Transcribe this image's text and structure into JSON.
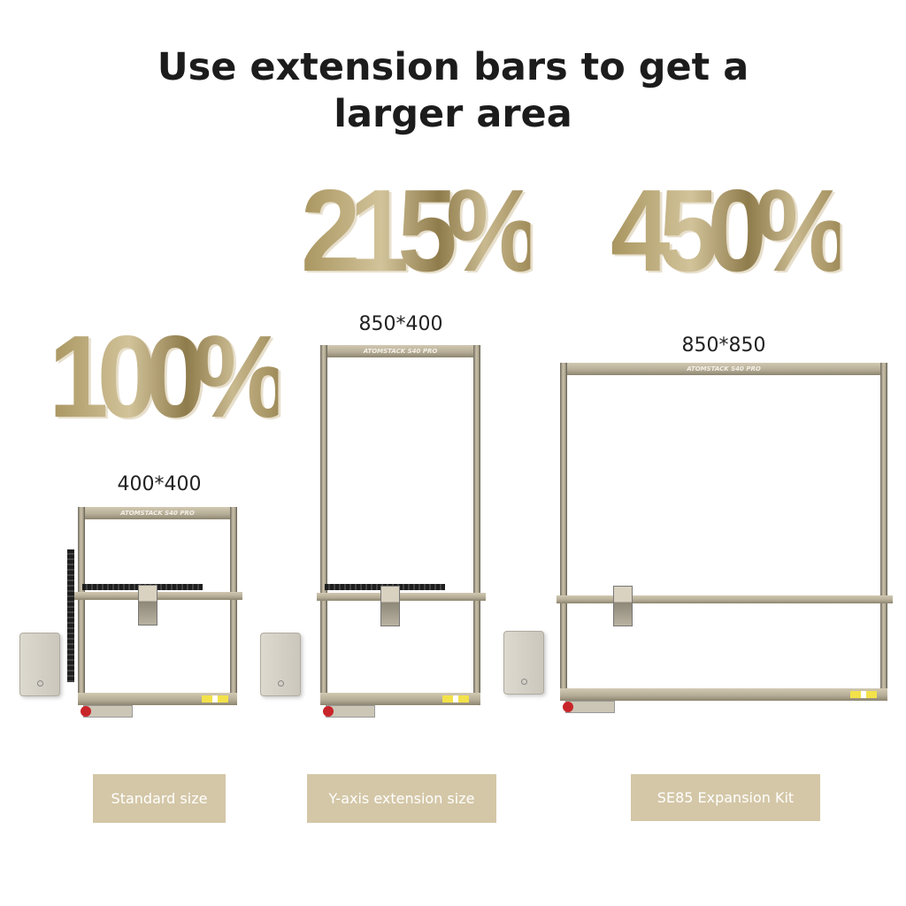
{
  "title": {
    "line1": "Use extension bars to get a",
    "line2": "larger area"
  },
  "machines": [
    {
      "percent": "100%",
      "dimensions": "400*400",
      "brand": "ATOMSTACK S40 PRO",
      "label": "Standard size"
    },
    {
      "percent": "215%",
      "dimensions": "850*400",
      "brand": "ATOMSTACK S40 PRO",
      "label": "Y-axis extension size"
    },
    {
      "percent": "450%",
      "dimensions": "850*850",
      "brand": "ATOMSTACK S40 PRO",
      "label": "SE85 Expansion Kit"
    }
  ],
  "colors": {
    "gold": "#b09d6a",
    "label_bg": "#d4c7a7",
    "rail": "#b8ae98"
  }
}
